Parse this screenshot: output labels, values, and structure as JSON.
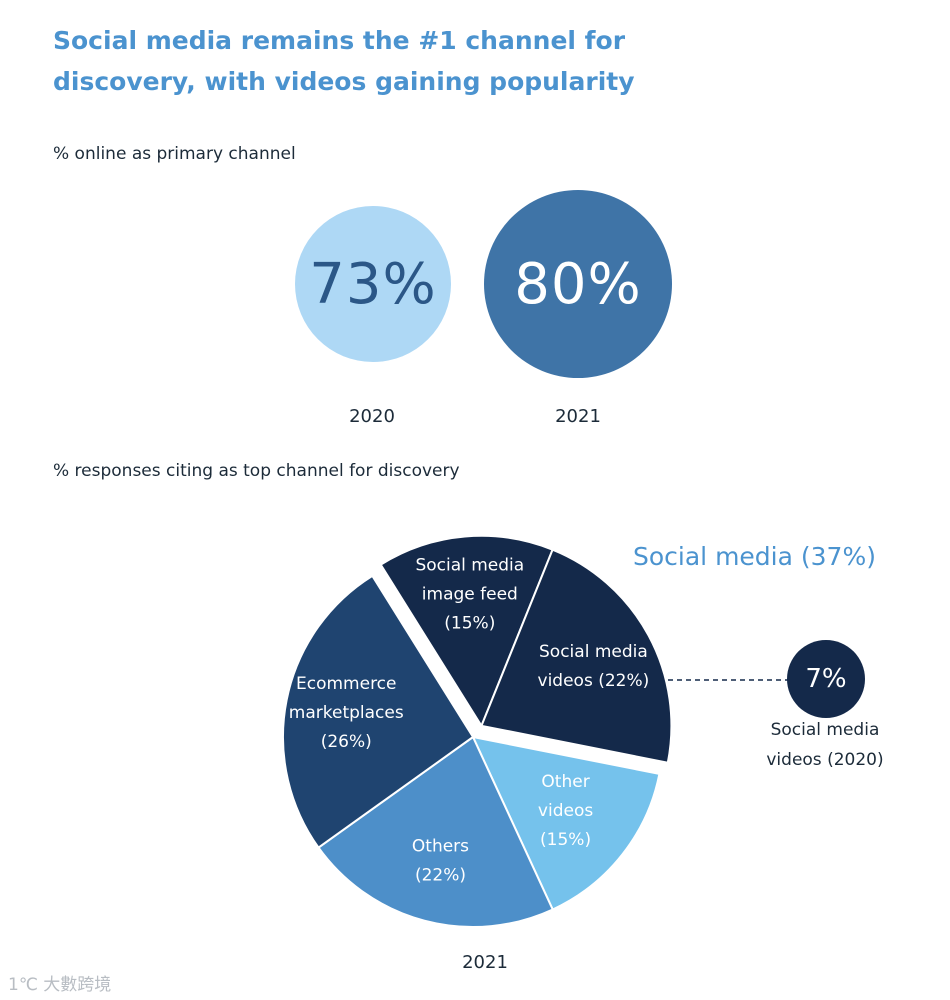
{
  "title": {
    "line1": "Social media remains the #1 channel for",
    "line2": "discovery, with videos gaining popularity"
  },
  "primary_channel": {
    "subtitle": "% online as primary channel",
    "items": [
      {
        "year": "2020",
        "value": "73%"
      },
      {
        "year": "2021",
        "value": "80%"
      }
    ]
  },
  "discovery": {
    "subtitle": "% responses citing as top channel for discovery",
    "year": "2021",
    "callout": "Social media (37%)",
    "comparison": {
      "value": "7%",
      "caption_line1": "Social media",
      "caption_line2": "videos (2020)"
    }
  },
  "watermark": "1℃ 大數跨境",
  "colors": {
    "title": "#4b93cf",
    "bubble_2020": "#aed8f5",
    "bubble_2021": "#3f74a7",
    "navy": "#14294a"
  },
  "chart_data": [
    {
      "type": "bar",
      "title": "% online as primary channel",
      "categories": [
        "2020",
        "2021"
      ],
      "values": [
        73,
        80
      ],
      "unit": "%"
    },
    {
      "type": "pie",
      "title": "% responses citing as top channel for discovery",
      "year": "2021",
      "slices": [
        {
          "label_lines": [
            "Social media",
            "image feed",
            "(15%)"
          ],
          "value": 15,
          "color": "#14294a",
          "exploded": true
        },
        {
          "label_lines": [
            "Social media",
            "videos (22%)"
          ],
          "value": 22,
          "color": "#14294a",
          "exploded": true
        },
        {
          "label_lines": [
            "Other",
            "videos",
            "(15%)"
          ],
          "value": 15,
          "color": "#75c2ec",
          "exploded": false
        },
        {
          "label_lines": [
            "Others",
            "(22%)"
          ],
          "value": 22,
          "color": "#4d8fc9",
          "exploded": false
        },
        {
          "label_lines": [
            "Ecommerce",
            "marketplaces",
            "(26%)"
          ],
          "value": 26,
          "color": "#1f4470",
          "exploded": false
        }
      ]
    }
  ]
}
